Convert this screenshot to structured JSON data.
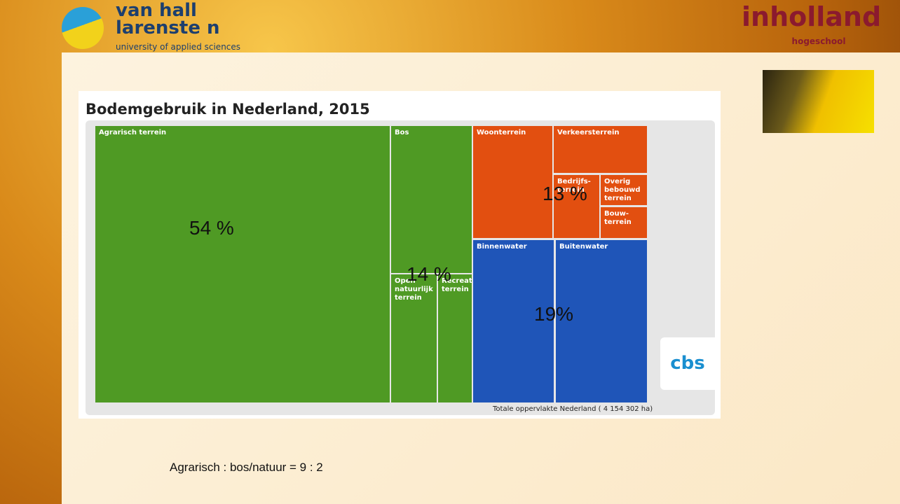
{
  "header": {
    "logo_left": {
      "line1": "van hall",
      "line2": "larenste n",
      "line3": "university of applied sciences"
    },
    "logo_right": {
      "name": "inholland",
      "sub": "hogeschool"
    }
  },
  "treemap": {
    "title": "Bodemgebruik in Nederland, 2015",
    "cells": [
      "Agrarisch terrein",
      "Bos",
      "Open natuurlijk terrein",
      "Recreatie-terrein",
      "Woonterrein",
      "Verkeersterrein",
      "Bedrijfs-terrein",
      "Overig bebouwd terrein",
      "Bouw-terrein",
      "Binnenwater",
      "Buitenwater"
    ],
    "footnote": "Totale oppervlakte Nederland ( 4 154 302 ha)",
    "logo": "cbs"
  },
  "overlays": [
    "54 %",
    "14 %",
    "13 %",
    "19%"
  ],
  "caption": "Agrarisch : bos/natuur = 9 : 2"
}
